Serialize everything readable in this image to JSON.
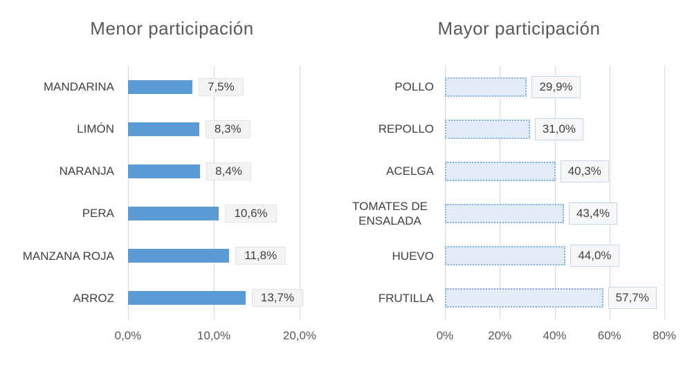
{
  "page_background": "#ffffff",
  "chart_data": [
    {
      "type": "bar",
      "orientation": "horizontal",
      "title": "Menor participación",
      "categories": [
        "MANDARINA",
        "LIMÓN",
        "NARANJA",
        "PERA",
        "MANZANA ROJA",
        "ARROZ"
      ],
      "values": [
        7.5,
        8.3,
        8.4,
        10.6,
        11.8,
        13.7
      ],
      "value_labels": [
        "7,5%",
        "8,3%",
        "8,4%",
        "10,6%",
        "11,8%",
        "13,7%"
      ],
      "xlabel": "",
      "ylabel": "",
      "x_ticks": [
        "0,0%",
        "10,0%",
        "20,0%"
      ],
      "xlim": [
        0,
        20
      ],
      "grid": "vertical",
      "legend": "none",
      "bar_style": "solid",
      "bar_color": "#5b9bd5",
      "label_box_fill": "#f3f3f3",
      "label_box_border": "#e4e4e4",
      "title_color": "#595959",
      "axis_text_color": "#595959"
    },
    {
      "type": "bar",
      "orientation": "horizontal",
      "title": "Mayor participación",
      "categories": [
        "POLLO",
        "REPOLLO",
        "ACELGA",
        "TOMATES DE ENSALADA",
        "HUEVO",
        "FRUTILLA"
      ],
      "values": [
        29.9,
        31.0,
        40.3,
        43.4,
        44.0,
        57.7
      ],
      "value_labels": [
        "29,9%",
        "31,0%",
        "40,3%",
        "43,4%",
        "44,0%",
        "57,7%"
      ],
      "xlabel": "",
      "ylabel": "",
      "x_ticks": [
        "0%",
        "20%",
        "40%",
        "60%",
        "80%"
      ],
      "xlim": [
        0,
        80
      ],
      "grid": "vertical",
      "legend": "none",
      "bar_style": "dotted",
      "bar_fill": "#e1ecf8",
      "bar_border": "#85afdf",
      "label_box_fill": "#f6f7f9",
      "label_box_border": "#c9d6e5",
      "title_color": "#595959",
      "axis_text_color": "#595959"
    }
  ]
}
